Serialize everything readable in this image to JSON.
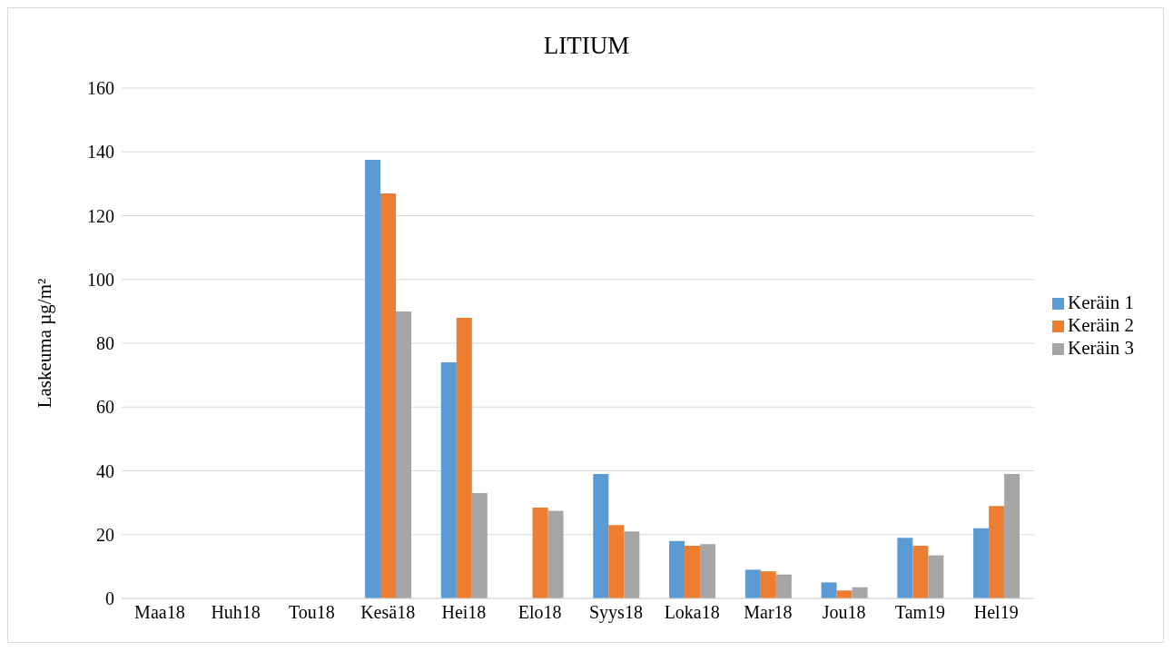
{
  "chart_data": {
    "type": "bar",
    "title": "LITIUM",
    "ylabel": "Laskeuma µg/m²",
    "categories": [
      "Maa18",
      "Huh18",
      "Tou18",
      "Kesä18",
      "Hei18",
      "Elo18",
      "Syys18",
      "Loka18",
      "Mar18",
      "Jou18",
      "Tam19",
      "Hel19"
    ],
    "series": [
      {
        "name": "Keräin 1",
        "color": "#5b9bd5",
        "values": [
          null,
          null,
          null,
          137.5,
          74,
          null,
          39,
          18,
          9,
          5,
          19,
          22
        ]
      },
      {
        "name": "Keräin 2",
        "color": "#ed7d31",
        "values": [
          null,
          null,
          null,
          127,
          88,
          28.5,
          23,
          16.5,
          8.5,
          2.5,
          16.5,
          29
        ]
      },
      {
        "name": "Keräin 3",
        "color": "#a5a5a5",
        "values": [
          null,
          null,
          null,
          90,
          33,
          27.5,
          21,
          17,
          7.5,
          3.5,
          13.5,
          39
        ]
      }
    ],
    "ylim": [
      0,
      160
    ],
    "yticks": [
      0,
      20,
      40,
      60,
      80,
      100,
      120,
      140,
      160
    ],
    "grid": "y",
    "legend": "right"
  }
}
